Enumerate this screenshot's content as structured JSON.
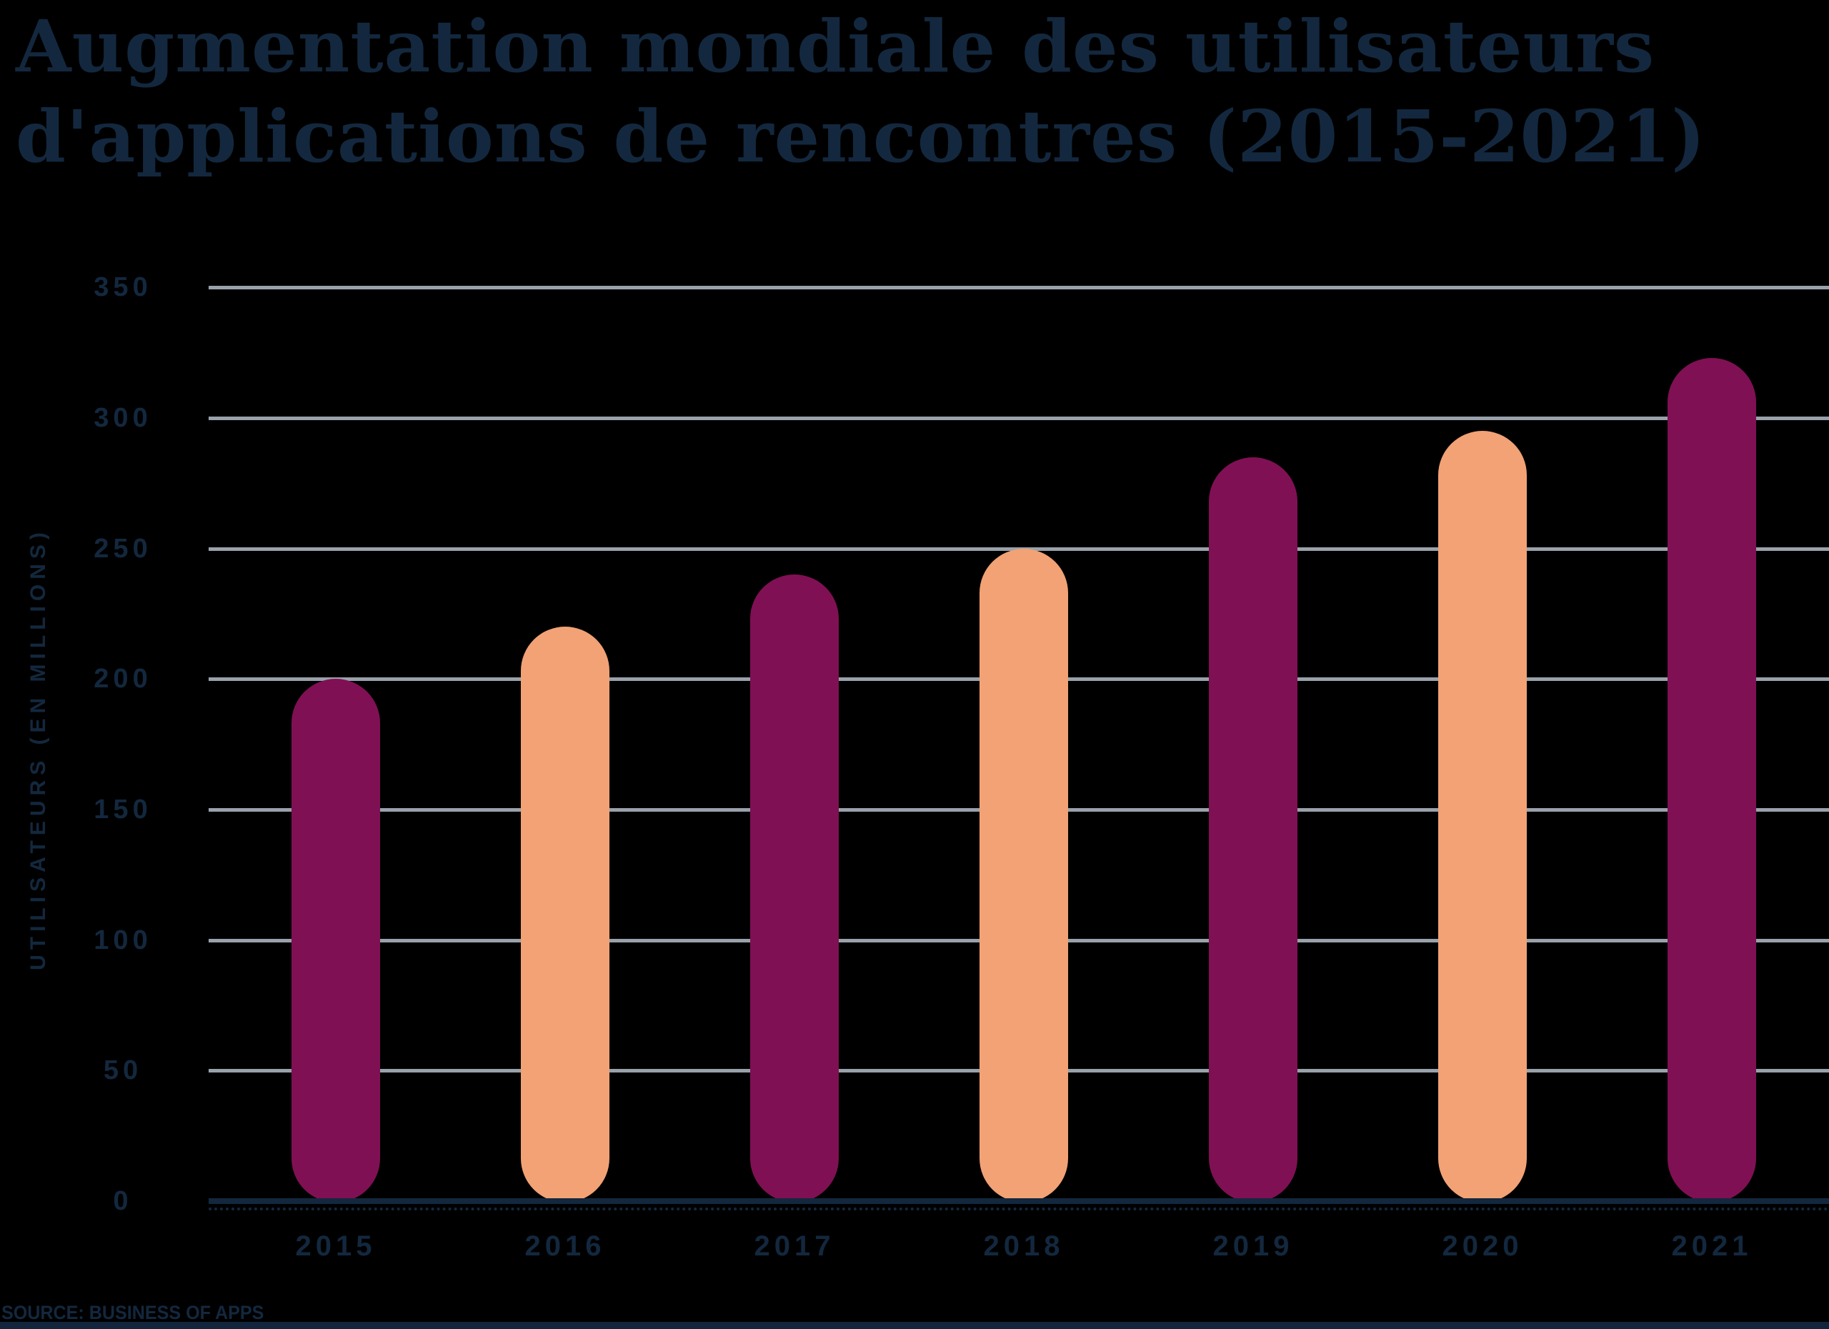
{
  "title_lines": [
    "Augmentation mondiale des utilisateurs",
    "d'applications de rencontres (2015-2021)"
  ],
  "chart_data": {
    "type": "bar",
    "title": "Augmentation mondiale des utilisateurs d'applications de rencontres (2015-2021)",
    "xlabel": "",
    "ylabel": "UTILISATEURS (EN MILLIONS)",
    "categories": [
      "2015",
      "2016",
      "2017",
      "2018",
      "2019",
      "2020",
      "2021"
    ],
    "values": [
      200,
      220,
      240,
      250,
      285,
      295,
      323
    ],
    "unit": "millions d'utilisateurs",
    "ylim": [
      0,
      350
    ],
    "ytick_step": 50,
    "yticks": [
      350,
      300,
      250,
      200,
      150,
      100,
      50,
      0
    ],
    "grid": true,
    "legend": null,
    "bar_color_pattern": [
      "#801054",
      "#F2A275"
    ],
    "colors": {
      "bar_magenta": "#801054",
      "bar_orange": "#F2A275",
      "gridline": "#99A2AB",
      "axis_text": "#13283E",
      "baseline": "#13283E",
      "title_text": "#13283E",
      "bottom_strip": "#13253C",
      "background": "#000000"
    },
    "source": "SOURCE: BUSINESS OF APPS"
  }
}
